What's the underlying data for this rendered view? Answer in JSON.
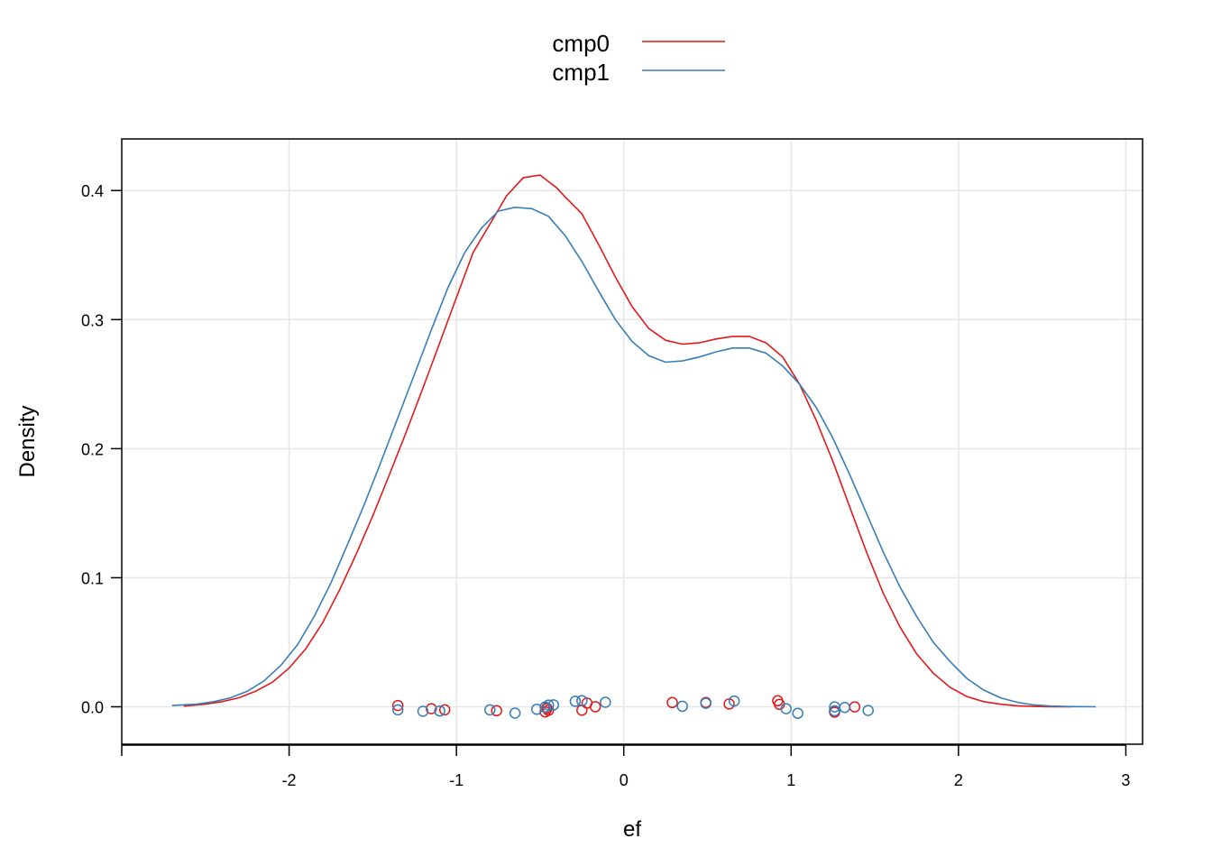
{
  "chart_data": {
    "type": "line",
    "title": "",
    "xlabel": "ef",
    "ylabel": "Density",
    "xlim": [
      -3.0,
      3.1
    ],
    "ylim": [
      -0.029,
      0.44
    ],
    "x_ticks": [
      -2,
      -1,
      0,
      1,
      2,
      3
    ],
    "x_tick_labels": [
      "-2",
      "-1",
      "0",
      "1",
      "2",
      "3"
    ],
    "y_ticks": [
      0.0,
      0.1,
      0.2,
      0.3,
      0.4
    ],
    "y_tick_labels": [
      "0.0",
      "0.1",
      "0.2",
      "0.3",
      "0.4"
    ],
    "grid": true,
    "legend_position": "top-center",
    "series": [
      {
        "name": "cmp0",
        "color": "#e31a1c",
        "x": [
          -2.63,
          -2.5,
          -2.4,
          -2.3,
          -2.2,
          -2.1,
          -2.0,
          -1.9,
          -1.8,
          -1.7,
          -1.6,
          -1.5,
          -1.4,
          -1.3,
          -1.2,
          -1.1,
          -1.0,
          -0.9,
          -0.8,
          -0.7,
          -0.6,
          -0.5,
          -0.4,
          -0.35,
          -0.25,
          -0.15,
          -0.05,
          0.05,
          0.15,
          0.25,
          0.35,
          0.45,
          0.55,
          0.65,
          0.75,
          0.85,
          0.95,
          1.05,
          1.15,
          1.25,
          1.35,
          1.45,
          1.55,
          1.65,
          1.75,
          1.85,
          1.95,
          2.05,
          2.15,
          2.25,
          2.35,
          2.45,
          2.55,
          2.68
        ],
        "y": [
          0.0005,
          0.002,
          0.004,
          0.007,
          0.012,
          0.019,
          0.03,
          0.045,
          0.065,
          0.09,
          0.118,
          0.148,
          0.18,
          0.213,
          0.247,
          0.282,
          0.317,
          0.352,
          0.374,
          0.396,
          0.41,
          0.412,
          0.402,
          0.395,
          0.382,
          0.358,
          0.333,
          0.31,
          0.293,
          0.284,
          0.281,
          0.282,
          0.285,
          0.287,
          0.287,
          0.282,
          0.271,
          0.25,
          0.222,
          0.19,
          0.155,
          0.12,
          0.088,
          0.062,
          0.041,
          0.026,
          0.015,
          0.008,
          0.004,
          0.002,
          0.0008,
          0.0003,
          0.0001,
          0.0
        ],
        "rug": [
          -1.35,
          -1.15,
          -1.07,
          -0.76,
          -0.47,
          -0.46,
          -0.46,
          -0.45,
          -0.25,
          -0.22,
          -0.17,
          0.29,
          0.49,
          0.63,
          0.92,
          0.93,
          1.26,
          1.26,
          1.38
        ]
      },
      {
        "name": "cmp1",
        "color": "#377eb8",
        "x": [
          -2.7,
          -2.55,
          -2.45,
          -2.35,
          -2.25,
          -2.15,
          -2.05,
          -1.95,
          -1.85,
          -1.75,
          -1.65,
          -1.55,
          -1.45,
          -1.35,
          -1.25,
          -1.15,
          -1.05,
          -0.95,
          -0.85,
          -0.75,
          -0.65,
          -0.55,
          -0.45,
          -0.35,
          -0.25,
          -0.15,
          -0.05,
          0.05,
          0.15,
          0.25,
          0.35,
          0.45,
          0.55,
          0.65,
          0.75,
          0.85,
          0.95,
          1.05,
          1.15,
          1.25,
          1.35,
          1.45,
          1.55,
          1.65,
          1.75,
          1.85,
          1.95,
          2.05,
          2.15,
          2.25,
          2.35,
          2.45,
          2.55,
          2.65,
          2.82
        ],
        "y": [
          0.001,
          0.002,
          0.004,
          0.007,
          0.012,
          0.02,
          0.032,
          0.048,
          0.07,
          0.096,
          0.126,
          0.157,
          0.19,
          0.224,
          0.258,
          0.292,
          0.325,
          0.352,
          0.371,
          0.384,
          0.387,
          0.386,
          0.38,
          0.365,
          0.345,
          0.322,
          0.3,
          0.283,
          0.272,
          0.267,
          0.268,
          0.271,
          0.275,
          0.278,
          0.278,
          0.274,
          0.264,
          0.25,
          0.232,
          0.208,
          0.18,
          0.15,
          0.12,
          0.093,
          0.07,
          0.05,
          0.035,
          0.022,
          0.013,
          0.007,
          0.0035,
          0.0015,
          0.0006,
          0.0002,
          0.0
        ],
        "rug": [
          -1.35,
          -1.2,
          -1.1,
          -0.8,
          -0.65,
          -0.52,
          -0.47,
          -0.45,
          -0.42,
          -0.29,
          -0.25,
          -0.11,
          0.35,
          0.49,
          0.66,
          0.97,
          1.04,
          1.26,
          1.26,
          1.32,
          1.46
        ]
      }
    ]
  }
}
